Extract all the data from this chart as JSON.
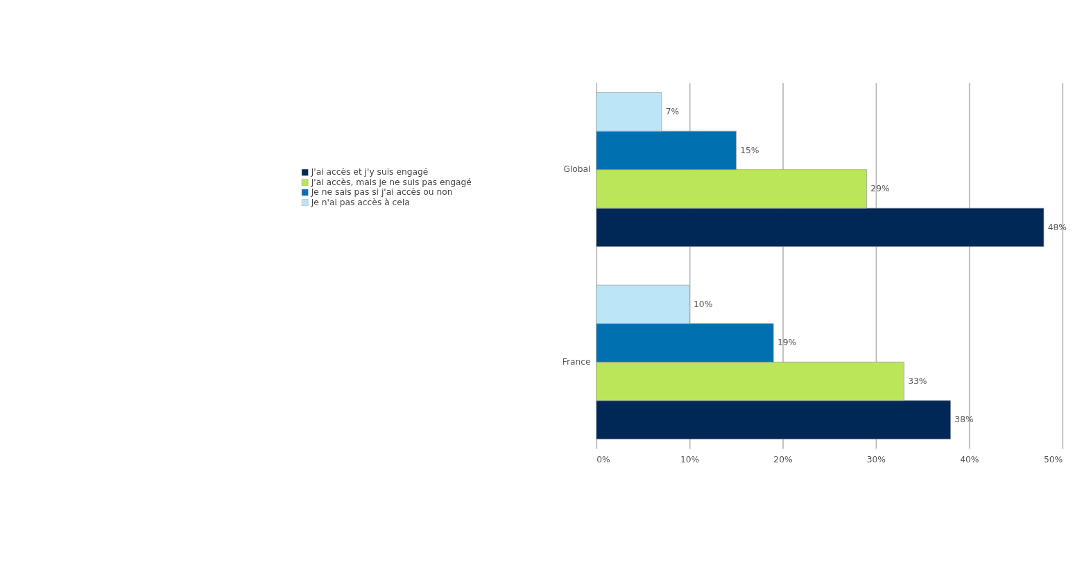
{
  "chart_data": {
    "type": "bar",
    "orientation": "horizontal",
    "categories": [
      "Global",
      "France"
    ],
    "series": [
      {
        "name": "J'ai accès et j'y suis engagé",
        "color": "#002856",
        "values": [
          48,
          38
        ],
        "value_labels": [
          "48%",
          "38%"
        ]
      },
      {
        "name": "J'ai accès, mais je ne suis pas engagé",
        "color": "#bce65a",
        "values": [
          29,
          33
        ],
        "value_labels": [
          "29%",
          "33%"
        ]
      },
      {
        "name": "Je ne sais pas si j'ai accès ou non",
        "color": "#0070b0",
        "values": [
          15,
          19
        ],
        "value_labels": [
          "15%",
          "19%"
        ]
      },
      {
        "name": "Je n'ai pas accès à cela",
        "color": "#bde5f8",
        "values": [
          7,
          10
        ],
        "value_labels": [
          "7%",
          "10%"
        ]
      }
    ],
    "xlim": [
      0,
      50
    ],
    "xticks": [
      {
        "value": 0,
        "label": "0%"
      },
      {
        "value": 10,
        "label": "10%"
      },
      {
        "value": 20,
        "label": "20%"
      },
      {
        "value": 30,
        "label": "30%"
      },
      {
        "value": 40,
        "label": "40%"
      },
      {
        "value": 50,
        "label": "50%"
      }
    ],
    "grid": "x",
    "legend": "left"
  }
}
